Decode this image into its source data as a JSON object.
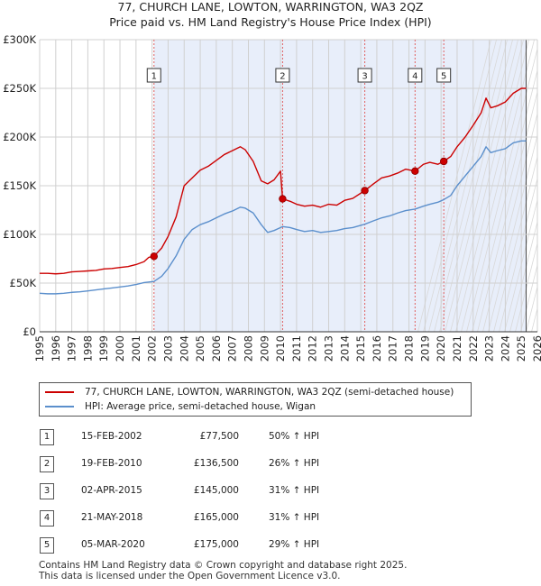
{
  "title_line1": "77, CHURCH LANE, LOWTON, WARRINGTON, WA3 2QZ",
  "title_line2": "Price paid vs. HM Land Registry's House Price Index (HPI)",
  "chart_data": {
    "type": "line",
    "x_range": [
      1995,
      2026
    ],
    "ylim": [
      0,
      300000
    ],
    "y_ticks": [
      {
        "value": 0,
        "label": "£0"
      },
      {
        "value": 50000,
        "label": "£50K"
      },
      {
        "value": 100000,
        "label": "£100K"
      },
      {
        "value": 150000,
        "label": "£150K"
      },
      {
        "value": 200000,
        "label": "£200K"
      },
      {
        "value": 250000,
        "label": "£250K"
      },
      {
        "value": 300000,
        "label": "£300K"
      }
    ],
    "x_ticks": [
      "1995",
      "1996",
      "1997",
      "1998",
      "1999",
      "2000",
      "2001",
      "2002",
      "2003",
      "2004",
      "2005",
      "2006",
      "2007",
      "2008",
      "2009",
      "2010",
      "2011",
      "2012",
      "2013",
      "2014",
      "2015",
      "2016",
      "2017",
      "2018",
      "2019",
      "2020",
      "2021",
      "2022",
      "2023",
      "2024",
      "2025",
      "2026"
    ],
    "data_end": 2025.3,
    "colors": {
      "property": "#cc0000",
      "hpi": "#5b8fcc",
      "shade": "#e8eefa",
      "vline": "#e06060"
    },
    "series": [
      {
        "name": "77, CHURCH LANE, LOWTON, WARRINGTON, WA3 2QZ (semi-detached house)",
        "color": "#cc0000",
        "points": [
          [
            1995.0,
            60000
          ],
          [
            1995.5,
            60000
          ],
          [
            1996,
            59500
          ],
          [
            1996.5,
            60000
          ],
          [
            1997,
            61500
          ],
          [
            1997.5,
            62000
          ],
          [
            1998,
            62500
          ],
          [
            1998.5,
            63000
          ],
          [
            1999,
            64500
          ],
          [
            1999.5,
            65000
          ],
          [
            2000,
            66000
          ],
          [
            2000.5,
            67000
          ],
          [
            2001,
            69000
          ],
          [
            2001.5,
            72000
          ],
          [
            2001.8,
            76500
          ],
          [
            2002.12,
            77500
          ],
          [
            2002.6,
            86000
          ],
          [
            2003,
            98000
          ],
          [
            2003.5,
            118000
          ],
          [
            2004,
            150000
          ],
          [
            2004.5,
            158000
          ],
          [
            2005,
            166000
          ],
          [
            2005.5,
            170000
          ],
          [
            2006,
            176000
          ],
          [
            2006.5,
            182000
          ],
          [
            2007,
            186000
          ],
          [
            2007.5,
            190000
          ],
          [
            2007.8,
            187000
          ],
          [
            2008.3,
            175000
          ],
          [
            2008.8,
            155000
          ],
          [
            2009.2,
            152000
          ],
          [
            2009.6,
            156000
          ],
          [
            2010.0,
            165000
          ],
          [
            2010.13,
            136500
          ],
          [
            2010.6,
            134000
          ],
          [
            2011,
            131000
          ],
          [
            2011.5,
            129000
          ],
          [
            2012,
            130000
          ],
          [
            2012.5,
            128000
          ],
          [
            2013,
            131000
          ],
          [
            2013.5,
            130000
          ],
          [
            2014,
            135000
          ],
          [
            2014.5,
            137000
          ],
          [
            2015.25,
            145000
          ],
          [
            2015.8,
            152000
          ],
          [
            2016.3,
            158000
          ],
          [
            2016.8,
            160000
          ],
          [
            2017.3,
            163000
          ],
          [
            2017.8,
            167000
          ],
          [
            2018.38,
            165000
          ],
          [
            2018.9,
            172000
          ],
          [
            2019.3,
            174000
          ],
          [
            2019.8,
            172000
          ],
          [
            2020.17,
            175000
          ],
          [
            2020.6,
            180000
          ],
          [
            2021,
            190000
          ],
          [
            2021.5,
            200000
          ],
          [
            2022,
            212000
          ],
          [
            2022.5,
            225000
          ],
          [
            2022.8,
            240000
          ],
          [
            2023.1,
            230000
          ],
          [
            2023.5,
            232000
          ],
          [
            2024,
            236000
          ],
          [
            2024.5,
            245000
          ],
          [
            2025.0,
            250000
          ],
          [
            2025.3,
            250000
          ]
        ]
      },
      {
        "name": "HPI: Average price, semi-detached house, Wigan",
        "color": "#5b8fcc",
        "points": [
          [
            1995.0,
            39500
          ],
          [
            1995.5,
            39000
          ],
          [
            1996,
            39000
          ],
          [
            1996.5,
            39500
          ],
          [
            1997,
            40500
          ],
          [
            1997.5,
            41000
          ],
          [
            1998,
            42000
          ],
          [
            1998.5,
            43000
          ],
          [
            1999,
            44000
          ],
          [
            1999.5,
            45000
          ],
          [
            2000,
            46000
          ],
          [
            2000.5,
            47000
          ],
          [
            2001,
            48500
          ],
          [
            2001.5,
            50500
          ],
          [
            2002.12,
            51700
          ],
          [
            2002.6,
            57000
          ],
          [
            2003,
            65000
          ],
          [
            2003.5,
            78000
          ],
          [
            2004,
            95000
          ],
          [
            2004.5,
            105000
          ],
          [
            2005,
            110000
          ],
          [
            2005.5,
            113000
          ],
          [
            2006,
            117000
          ],
          [
            2006.5,
            121000
          ],
          [
            2007,
            124000
          ],
          [
            2007.5,
            128000
          ],
          [
            2007.8,
            127000
          ],
          [
            2008.3,
            122000
          ],
          [
            2008.8,
            110000
          ],
          [
            2009.2,
            102000
          ],
          [
            2009.6,
            104000
          ],
          [
            2010.13,
            108000
          ],
          [
            2010.6,
            107000
          ],
          [
            2011,
            105000
          ],
          [
            2011.5,
            103000
          ],
          [
            2012,
            104000
          ],
          [
            2012.5,
            102000
          ],
          [
            2013,
            103000
          ],
          [
            2013.5,
            104000
          ],
          [
            2014,
            106000
          ],
          [
            2014.5,
            107000
          ],
          [
            2015.25,
            110500
          ],
          [
            2015.8,
            114000
          ],
          [
            2016.3,
            117000
          ],
          [
            2016.8,
            119000
          ],
          [
            2017.3,
            122000
          ],
          [
            2017.8,
            124500
          ],
          [
            2018.38,
            126000
          ],
          [
            2018.9,
            129000
          ],
          [
            2019.3,
            131000
          ],
          [
            2019.8,
            133000
          ],
          [
            2020.17,
            135700
          ],
          [
            2020.6,
            140000
          ],
          [
            2021,
            150000
          ],
          [
            2021.5,
            160000
          ],
          [
            2022,
            170000
          ],
          [
            2022.5,
            180000
          ],
          [
            2022.8,
            190000
          ],
          [
            2023.1,
            184000
          ],
          [
            2023.5,
            186000
          ],
          [
            2024,
            188000
          ],
          [
            2024.5,
            194000
          ],
          [
            2025.0,
            196000
          ],
          [
            2025.3,
            196000
          ]
        ]
      }
    ],
    "transactions": [
      {
        "num": "1",
        "year": 2002.12,
        "price": 77500
      },
      {
        "num": "2",
        "year": 2010.13,
        "price": 136500
      },
      {
        "num": "3",
        "year": 2015.25,
        "price": 145000
      },
      {
        "num": "4",
        "year": 2018.38,
        "price": 165000
      },
      {
        "num": "5",
        "year": 2020.17,
        "price": 175000
      }
    ]
  },
  "legend": {
    "property_label": "77, CHURCH LANE, LOWTON, WARRINGTON, WA3 2QZ (semi-detached house)",
    "hpi_label": "HPI: Average price, semi-detached house, Wigan"
  },
  "table": [
    {
      "num": "1",
      "date": "15-FEB-2002",
      "price": "£77,500",
      "hpi": "50% ↑ HPI"
    },
    {
      "num": "2",
      "date": "19-FEB-2010",
      "price": "£136,500",
      "hpi": "26% ↑ HPI"
    },
    {
      "num": "3",
      "date": "02-APR-2015",
      "price": "£145,000",
      "hpi": "31% ↑ HPI"
    },
    {
      "num": "4",
      "date": "21-MAY-2018",
      "price": "£165,000",
      "hpi": "31% ↑ HPI"
    },
    {
      "num": "5",
      "date": "05-MAR-2020",
      "price": "£175,000",
      "hpi": "29% ↑ HPI"
    }
  ],
  "footer": {
    "line1": "Contains HM Land Registry data © Crown copyright and database right 2025.",
    "line2": "This data is licensed under the Open Government Licence v3.0."
  }
}
